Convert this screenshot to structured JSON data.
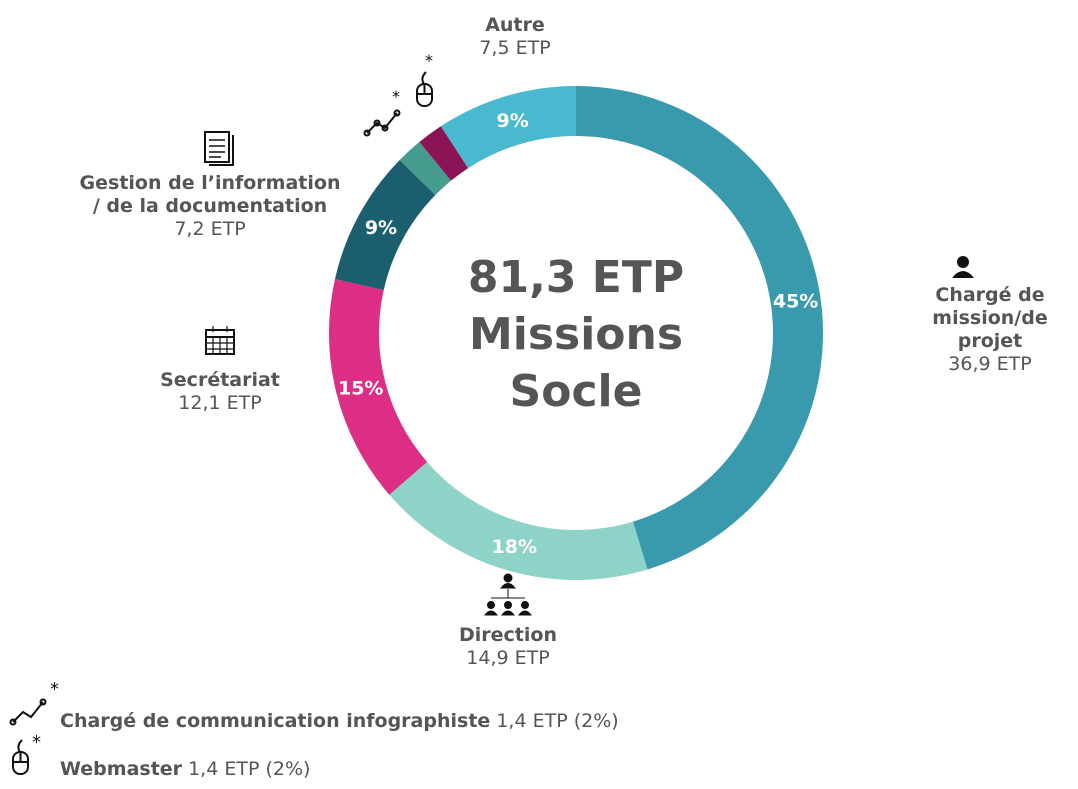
{
  "chart_data": {
    "type": "donut",
    "center_label": [
      "81,3 ETP",
      "Missions",
      "Socle"
    ],
    "categories": [
      "Chargé de mission/de projet",
      "Direction",
      "Secrétariat",
      "Gestion de l’information / de la documentation",
      "Chargé de communication infographiste",
      "Webmaster",
      "Autre"
    ],
    "values": [
      36.9,
      14.9,
      12.1,
      7.2,
      1.4,
      1.4,
      7.5
    ],
    "value_labels": [
      "36,9 ETP",
      "14,9 ETP",
      "12,1 ETP",
      "7,2 ETP",
      "1,4 ETP",
      "1,4 ETP",
      "7,5 ETP"
    ],
    "percents": [
      45,
      18,
      15,
      9,
      2,
      2,
      9
    ],
    "percent_labels": [
      "45%",
      "18%",
      "15%",
      "9%",
      "(2%)",
      "(2%)",
      "9%"
    ],
    "colors": [
      "#3a9aad",
      "#8dd3c7",
      "#dc2e84",
      "#1b5f6f",
      "#459c8f",
      "#8b1456",
      "#48b9cf"
    ]
  }
}
